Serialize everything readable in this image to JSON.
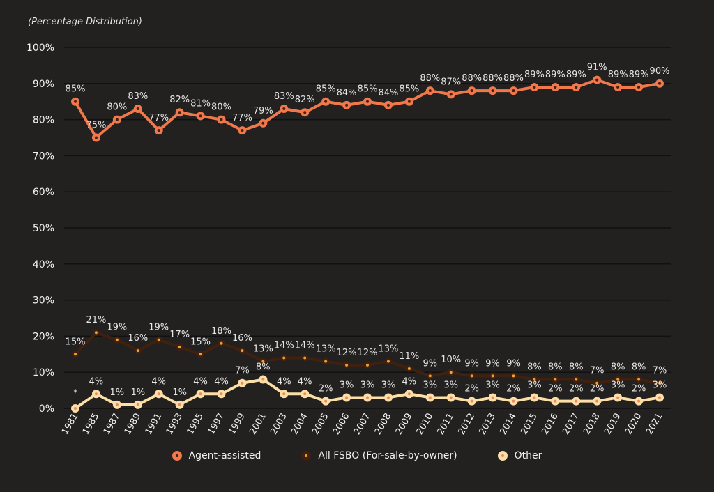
{
  "subtitle": "(Percentage Distribution)",
  "colors": {
    "background": "#222120",
    "grid": "#111111",
    "agent": "#f0784b",
    "fsbo": "#40200f",
    "other": "#fbdfa6",
    "label": "#e6e6e6"
  },
  "chart_data": {
    "type": "line",
    "x": [
      "1981",
      "1985",
      "1987",
      "1989",
      "1991",
      "1993",
      "1995",
      "1997",
      "1999",
      "2001",
      "2003",
      "2004",
      "2005",
      "2006",
      "2007",
      "2008",
      "2009",
      "2010",
      "2011",
      "2012",
      "2013",
      "2014",
      "2015",
      "2016",
      "2017",
      "2018",
      "2019",
      "2020",
      "2021"
    ],
    "ylim": [
      0,
      100
    ],
    "yticks": [
      "0%",
      "10%",
      "20%",
      "30%",
      "40%",
      "50%",
      "60%",
      "70%",
      "80%",
      "90%",
      "100%"
    ],
    "grid": true,
    "legend_position": "bottom",
    "series": [
      {
        "name": "Agent-assisted",
        "values": [
          85,
          75,
          80,
          83,
          77,
          82,
          81,
          80,
          77,
          79,
          83,
          82,
          85,
          84,
          85,
          84,
          85,
          88,
          87,
          88,
          88,
          88,
          89,
          89,
          89,
          91,
          89,
          89,
          90
        ],
        "labels": [
          "85%",
          "75%",
          "80%",
          "83%",
          "77%",
          "82%",
          "81%",
          "80%",
          "77%",
          "79%",
          "83%",
          "82%",
          "85%",
          "84%",
          "85%",
          "84%",
          "85%",
          "88%",
          "87%",
          "88%",
          "88%",
          "88%",
          "89%",
          "89%",
          "89%",
          "91%",
          "89%",
          "89%",
          "90%"
        ]
      },
      {
        "name": "All FSBO (For-sale-by-owner)",
        "values": [
          15,
          21,
          19,
          16,
          19,
          17,
          15,
          18,
          16,
          13,
          14,
          14,
          13,
          12,
          12,
          13,
          11,
          9,
          10,
          9,
          9,
          9,
          8,
          8,
          8,
          7,
          8,
          8,
          7
        ],
        "labels": [
          "15%",
          "21%",
          "19%",
          "16%",
          "19%",
          "17%",
          "15%",
          "18%",
          "16%",
          "13%",
          "14%",
          "14%",
          "13%",
          "12%",
          "12%",
          "13%",
          "11%",
          "9%",
          "10%",
          "9%",
          "9%",
          "9%",
          "8%",
          "8%",
          "8%",
          "7%",
          "8%",
          "8%",
          "7%"
        ]
      },
      {
        "name": "Other",
        "values": [
          0,
          4,
          1,
          1,
          4,
          1,
          4,
          4,
          7,
          8,
          4,
          4,
          2,
          3,
          3,
          3,
          4,
          3,
          3,
          2,
          3,
          2,
          3,
          2,
          2,
          2,
          3,
          2,
          3
        ],
        "labels": [
          "*",
          "4%",
          "1%",
          "1%",
          "4%",
          "1%",
          "4%",
          "4%",
          "7%",
          "8%",
          "4%",
          "4%",
          "2%",
          "3%",
          "3%",
          "3%",
          "4%",
          "3%",
          "3%",
          "2%",
          "3%",
          "2%",
          "3%",
          "2%",
          "2%",
          "2%",
          "3%",
          "2%",
          "3%"
        ]
      }
    ]
  }
}
